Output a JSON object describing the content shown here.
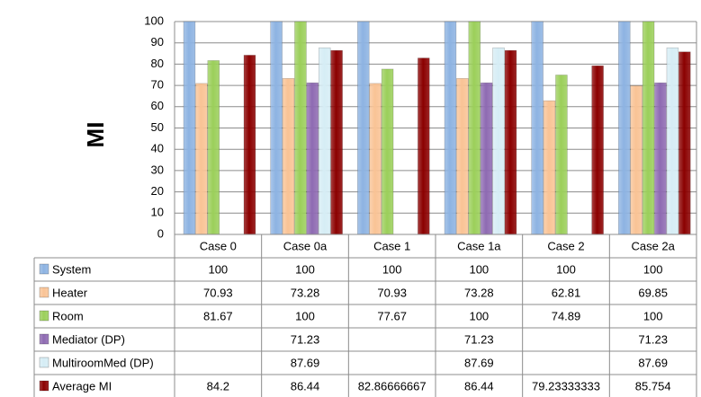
{
  "chart_data": {
    "type": "bar",
    "ylabel": "MI",
    "ylim": [
      0,
      100
    ],
    "yticks": [
      0,
      10,
      20,
      30,
      40,
      50,
      60,
      70,
      80,
      90,
      100
    ],
    "grid": true,
    "legend": "table-below",
    "categories": [
      "Case 0",
      "Case 0a",
      "Case 1",
      "Case 1a",
      "Case 2",
      "Case 2a"
    ],
    "series": [
      {
        "name": "System",
        "color": "#8db3e2",
        "values": [
          100,
          100,
          100,
          100,
          100,
          100
        ],
        "labels": [
          "100",
          "100",
          "100",
          "100",
          "100",
          "100"
        ]
      },
      {
        "name": "Heater",
        "color": "#f9c395",
        "values": [
          70.93,
          73.28,
          70.93,
          73.28,
          62.81,
          69.85
        ],
        "labels": [
          "70.93",
          "73.28",
          "70.93",
          "73.28",
          "62.81",
          "69.85"
        ]
      },
      {
        "name": "Room",
        "color": "#9bcf5a",
        "values": [
          81.67,
          100,
          77.67,
          100,
          74.89,
          100
        ],
        "labels": [
          "81.67",
          "100",
          "77.67",
          "100",
          "74.89",
          "100"
        ]
      },
      {
        "name": "Mediator (DP)",
        "color": "#8e6ab2",
        "values": [
          null,
          71.23,
          null,
          71.23,
          null,
          71.23
        ],
        "labels": [
          "",
          "71.23",
          "",
          "71.23",
          "",
          "71.23"
        ]
      },
      {
        "name": "MultiroomMed (DP)",
        "color": "#d6edf5",
        "values": [
          null,
          87.69,
          null,
          87.69,
          null,
          87.69
        ],
        "labels": [
          "",
          "87.69",
          "",
          "87.69",
          "",
          "87.69"
        ]
      },
      {
        "name": "Average MI",
        "color": "#8b0000",
        "values": [
          84.2,
          86.44,
          82.86666667,
          86.44,
          79.23333333,
          85.754
        ],
        "labels": [
          "84.2",
          "86.44",
          "82.86666667",
          "86.44",
          "79.23333333",
          "85.754"
        ]
      }
    ]
  }
}
